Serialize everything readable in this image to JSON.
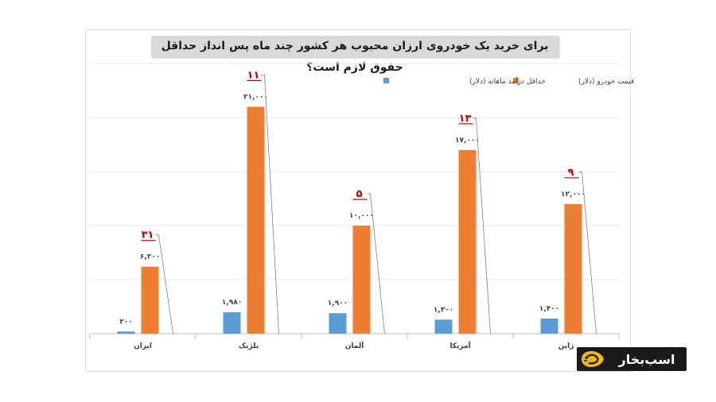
{
  "chart_data": {
    "type": "bar",
    "title": "برای خرید یک خودروی ارزان محبوب هر کشور چند ماه پس انداز حداقل حقوق لازم است؟",
    "categories": [
      "ایران",
      "بلژیک",
      "آلمان",
      "آمریکا",
      "ژاپن"
    ],
    "series": [
      {
        "name": "حداقل درآمد ماهانه (دلار)",
        "color": "#5b9bd5",
        "values": [
          200,
          1980,
          1900,
          1300,
          1400
        ],
        "labels": [
          "۲۰۰",
          "۱,۹۸۰",
          "۱,۹۰۰",
          "۱,۳۰۰",
          "۱,۴۰۰"
        ]
      },
      {
        "name": "قیمت خودرو (دلار)",
        "color": "#ed7d31",
        "values": [
          6200,
          21000,
          10000,
          17000,
          12000
        ],
        "labels": [
          "۶,۲۰۰",
          "۲۱,۰۰۰",
          "۱۰,۰۰۰",
          "۱۷,۰۰۰",
          "۱۲,۰۰۰"
        ]
      }
    ],
    "months_needed": {
      "values": [
        31,
        11,
        5,
        13,
        9
      ],
      "labels": [
        "۳۱",
        "۱۱",
        "۵",
        "۱۳",
        "۹"
      ],
      "color": "#c00000"
    },
    "ylim": [
      0,
      25000
    ],
    "grid": true,
    "legend": "top"
  },
  "logo": {
    "text": "اسب‌بخار"
  }
}
